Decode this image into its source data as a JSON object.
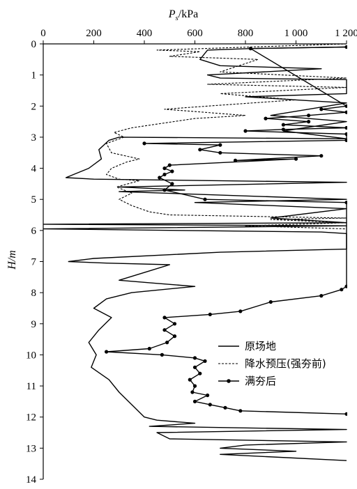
{
  "chart_data": {
    "type": "line",
    "title": "",
    "xlabel_main": "P",
    "xlabel_sub": "s",
    "xlabel_unit": "/kPa",
    "ylabel": "H/m",
    "x_axis_position": "top",
    "y_inverted": true,
    "xlim": [
      0,
      1200
    ],
    "ylim": [
      0,
      14
    ],
    "x_ticks": [
      0,
      200,
      400,
      600,
      800,
      1000,
      1200
    ],
    "x_tick_labels": [
      "0",
      "200",
      "400",
      "600",
      "800",
      "1 000",
      "1 200"
    ],
    "y_ticks": [
      0,
      1,
      2,
      3,
      4,
      5,
      6,
      7,
      8,
      9,
      10,
      11,
      12,
      13,
      14
    ],
    "y_tick_labels": [
      "0",
      "1",
      "2",
      "3",
      "4",
      "5",
      "6",
      "7",
      "8",
      "9",
      "10",
      "11",
      "12",
      "13",
      "14"
    ],
    "grid": false,
    "legend_position": "right-middle",
    "series": [
      {
        "name": "原场地",
        "style": "solid",
        "marker": false,
        "points": [
          [
            1200,
            0.1
          ],
          [
            820,
            0.15
          ],
          [
            650,
            0.2
          ],
          [
            620,
            0.5
          ],
          [
            700,
            0.7
          ],
          [
            1100,
            0.8
          ],
          [
            650,
            1.0
          ],
          [
            700,
            1.1
          ],
          [
            1200,
            1.15
          ],
          [
            1200,
            1.6
          ],
          [
            800,
            1.7
          ],
          [
            1000,
            1.8
          ],
          [
            1200,
            1.9
          ],
          [
            900,
            2.3
          ],
          [
            1200,
            2.5
          ],
          [
            950,
            2.8
          ],
          [
            1200,
            3.05
          ],
          [
            300,
            3.0
          ],
          [
            260,
            3.1
          ],
          [
            220,
            3.4
          ],
          [
            230,
            3.7
          ],
          [
            180,
            4.0
          ],
          [
            120,
            4.2
          ],
          [
            90,
            4.3
          ],
          [
            200,
            4.35
          ],
          [
            1200,
            4.45
          ],
          [
            300,
            4.6
          ],
          [
            560,
            4.7
          ],
          [
            300,
            4.75
          ],
          [
            1200,
            5.0
          ],
          [
            600,
            5.1
          ],
          [
            1200,
            5.3
          ],
          [
            900,
            5.6
          ],
          [
            1200,
            5.75
          ],
          [
            0,
            5.8
          ],
          [
            1200,
            5.85
          ],
          [
            0,
            5.95
          ],
          [
            1100,
            6.05
          ],
          [
            1200,
            6.1
          ],
          [
            1200,
            6.6
          ],
          [
            700,
            6.7
          ],
          [
            200,
            6.9
          ],
          [
            100,
            7.0
          ],
          [
            250,
            7.05
          ],
          [
            500,
            7.1
          ],
          [
            420,
            7.3
          ],
          [
            300,
            7.6
          ],
          [
            450,
            7.7
          ],
          [
            600,
            7.8
          ],
          [
            350,
            8.0
          ],
          [
            250,
            8.2
          ],
          [
            200,
            8.5
          ],
          [
            270,
            8.8
          ],
          [
            220,
            9.2
          ],
          [
            180,
            9.6
          ],
          [
            210,
            10.0
          ],
          [
            190,
            10.4
          ],
          [
            260,
            10.8
          ],
          [
            300,
            11.2
          ],
          [
            350,
            11.6
          ],
          [
            400,
            12.0
          ],
          [
            450,
            12.1
          ],
          [
            600,
            12.2
          ],
          [
            420,
            12.3
          ],
          [
            1200,
            12.4
          ],
          [
            450,
            12.5
          ],
          [
            500,
            12.7
          ],
          [
            1200,
            12.8
          ],
          [
            800,
            12.9
          ],
          [
            700,
            13.0
          ],
          [
            1000,
            13.1
          ],
          [
            700,
            13.2
          ],
          [
            1200,
            13.4
          ]
        ]
      },
      {
        "name": "降水预压(强夯前)",
        "style": "dashed",
        "marker": false,
        "points": [
          [
            1200,
            0.0
          ],
          [
            450,
            0.2
          ],
          [
            620,
            0.25
          ],
          [
            500,
            0.4
          ],
          [
            850,
            0.5
          ],
          [
            700,
            0.9
          ],
          [
            1200,
            1.1
          ],
          [
            650,
            1.3
          ],
          [
            1200,
            1.4
          ],
          [
            700,
            1.6
          ],
          [
            1000,
            1.8
          ],
          [
            650,
            2.0
          ],
          [
            480,
            2.1
          ],
          [
            800,
            2.3
          ],
          [
            600,
            2.4
          ],
          [
            350,
            2.7
          ],
          [
            280,
            2.85
          ],
          [
            320,
            3.0
          ],
          [
            250,
            3.2
          ],
          [
            270,
            3.5
          ],
          [
            380,
            3.7
          ],
          [
            330,
            3.8
          ],
          [
            270,
            4.0
          ],
          [
            250,
            4.2
          ],
          [
            300,
            4.35
          ],
          [
            380,
            4.4
          ],
          [
            290,
            4.6
          ],
          [
            350,
            4.8
          ],
          [
            300,
            5.0
          ],
          [
            350,
            5.2
          ],
          [
            420,
            5.4
          ],
          [
            500,
            5.5
          ],
          [
            1200,
            5.6
          ],
          [
            900,
            5.65
          ],
          [
            1200,
            5.75
          ],
          [
            800,
            5.85
          ],
          [
            1200,
            5.95
          ]
        ]
      },
      {
        "name": "满夯后",
        "style": "solid",
        "marker": true,
        "points": [
          [
            1200,
            0.1
          ],
          [
            820,
            0.15
          ],
          [
            1200,
            2.0
          ],
          [
            1100,
            2.1
          ],
          [
            1200,
            2.2
          ],
          [
            1050,
            2.3
          ],
          [
            880,
            2.4
          ],
          [
            1050,
            2.5
          ],
          [
            950,
            2.6
          ],
          [
            1200,
            2.7
          ],
          [
            950,
            2.75
          ],
          [
            800,
            2.8
          ],
          [
            1200,
            2.9
          ],
          [
            1200,
            3.1
          ],
          [
            400,
            3.2
          ],
          [
            700,
            3.25
          ],
          [
            620,
            3.4
          ],
          [
            700,
            3.5
          ],
          [
            1100,
            3.6
          ],
          [
            760,
            3.75
          ],
          [
            1000,
            3.7
          ],
          [
            500,
            3.9
          ],
          [
            480,
            4.0
          ],
          [
            510,
            4.1
          ],
          [
            480,
            4.2
          ],
          [
            460,
            4.3
          ],
          [
            510,
            4.5
          ],
          [
            480,
            4.7
          ],
          [
            640,
            5.0
          ],
          [
            1200,
            5.1
          ],
          [
            1200,
            7.8
          ],
          [
            1180,
            7.9
          ],
          [
            1100,
            8.1
          ],
          [
            900,
            8.3
          ],
          [
            780,
            8.6
          ],
          [
            660,
            8.7
          ],
          [
            480,
            8.8
          ],
          [
            520,
            9.0
          ],
          [
            480,
            9.2
          ],
          [
            520,
            9.4
          ],
          [
            490,
            9.6
          ],
          [
            420,
            9.8
          ],
          [
            250,
            9.9
          ],
          [
            470,
            10.0
          ],
          [
            600,
            10.1
          ],
          [
            640,
            10.2
          ],
          [
            600,
            10.4
          ],
          [
            620,
            10.6
          ],
          [
            580,
            10.8
          ],
          [
            600,
            11.0
          ],
          [
            590,
            11.2
          ],
          [
            650,
            11.3
          ],
          [
            600,
            11.5
          ],
          [
            660,
            11.6
          ],
          [
            720,
            11.7
          ],
          [
            780,
            11.8
          ],
          [
            1200,
            11.9
          ]
        ]
      }
    ]
  }
}
